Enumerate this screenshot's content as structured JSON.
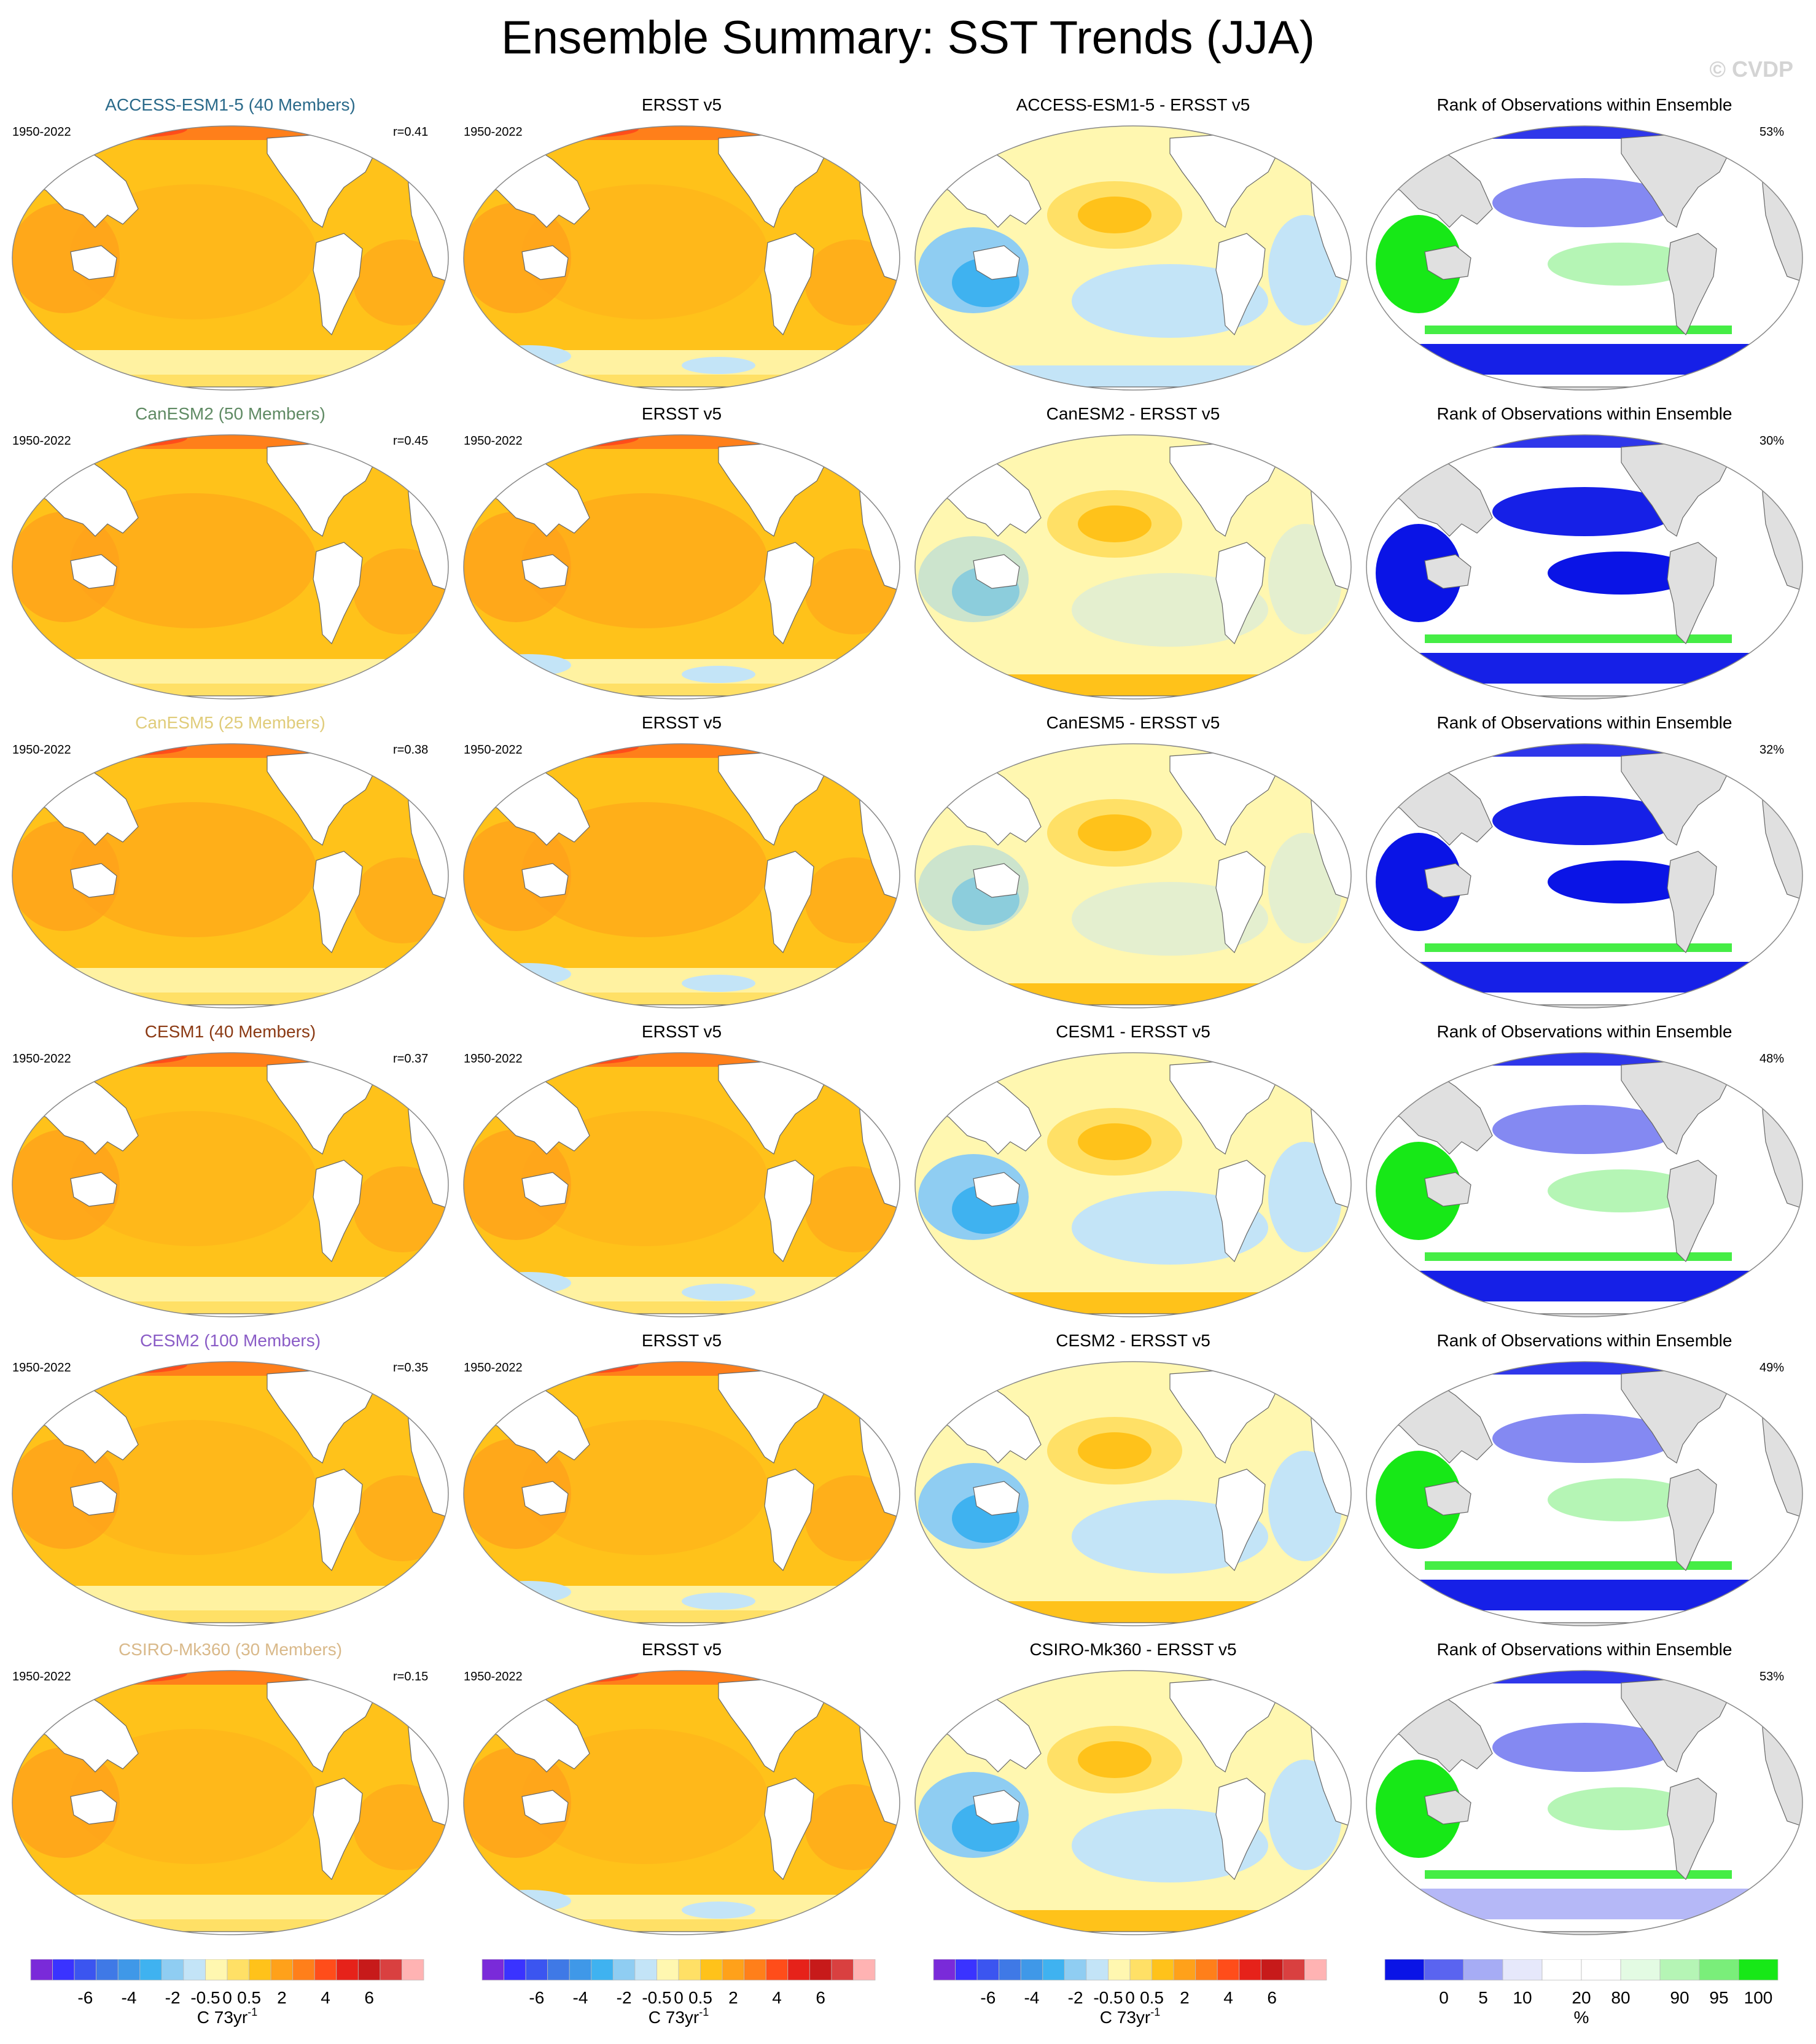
{
  "title": "Ensemble Summary: SST Trends (JJA)",
  "watermark": "© CVDP",
  "period_label": "1950-2022",
  "obs_title": "ERSST v5",
  "rank_title": "Rank of Observations within Ensemble",
  "rows": [
    {
      "model": "ACCESS-ESM1-5 (40 Members)",
      "model_color": "#2a6a8a",
      "r": "r=0.41",
      "diff_title": "ACCESS-ESM1-5 - ERSST v5",
      "rank_pct": "53%"
    },
    {
      "model": "CanESM2 (50 Members)",
      "model_color": "#5f8a63",
      "r": "r=0.45",
      "diff_title": "CanESM2 - ERSST v5",
      "rank_pct": "30%"
    },
    {
      "model": "CanESM5 (25 Members)",
      "model_color": "#e0cc7a",
      "r": "r=0.38",
      "diff_title": "CanESM5 - ERSST v5",
      "rank_pct": "32%"
    },
    {
      "model": "CESM1 (40 Members)",
      "model_color": "#8b3a14",
      "r": "r=0.37",
      "diff_title": "CESM1 - ERSST v5",
      "rank_pct": "48%"
    },
    {
      "model": "CESM2 (100 Members)",
      "model_color": "#8a5cc6",
      "r": "r=0.35",
      "diff_title": "CESM2 - ERSST v5",
      "rank_pct": "49%"
    },
    {
      "model": "CSIRO-Mk360 (30 Members)",
      "model_color": "#d9b98a",
      "r": "r=0.15",
      "diff_title": "CSIRO-Mk360 - ERSST v5",
      "rank_pct": "53%"
    }
  ],
  "trend_legend": {
    "ticks": [
      "-6",
      "-4",
      "-2",
      "-0.5",
      "0",
      "0.5",
      "2",
      "4",
      "6"
    ],
    "unit": "C 73yr",
    "unit_sup": "-1",
    "colors": [
      "#7a2ad9",
      "#3a33ff",
      "#3b55f0",
      "#3f79e6",
      "#3f98e8",
      "#3fb2f0",
      "#8fcdf2",
      "#c3e4f7",
      "#fff7b0",
      "#ffe066",
      "#ffc21a",
      "#ffa11a",
      "#ff7f1a",
      "#ff4d1a",
      "#e6221a",
      "#c71a1a",
      "#d94040",
      "#ffb3b3"
    ]
  },
  "rank_legend": {
    "ticks": [
      "0",
      "5",
      "10",
      "20",
      "80",
      "90",
      "95",
      "100"
    ],
    "unit": "%",
    "colors": [
      "#0a14e6",
      "#5a64f0",
      "#a6acf5",
      "#e6e8fb",
      "#ffffff",
      "#ffffff",
      "#e3fbe3",
      "#b5f5b5",
      "#7aee7a",
      "#17e817"
    ]
  }
}
